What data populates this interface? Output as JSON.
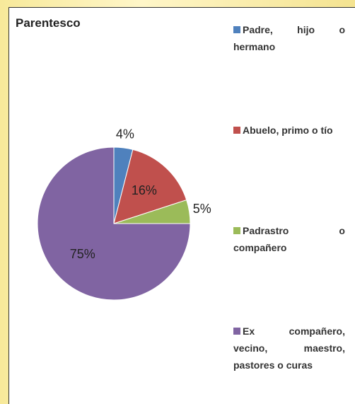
{
  "chart_data": {
    "type": "pie",
    "title": "Parentesco",
    "categories": [
      "Padre, hijo o hermano",
      "Abuelo, primo o tío",
      "Padrastro o compañero",
      "Ex compañero, vecino, maestro, pastores o curas"
    ],
    "values": [
      4,
      16,
      5,
      75
    ],
    "value_labels": [
      "4%",
      "16%",
      "5%",
      "75%"
    ],
    "colors": [
      "#4f81bd",
      "#c0504d",
      "#9bbb59",
      "#8064a2"
    ],
    "legend": "right"
  }
}
